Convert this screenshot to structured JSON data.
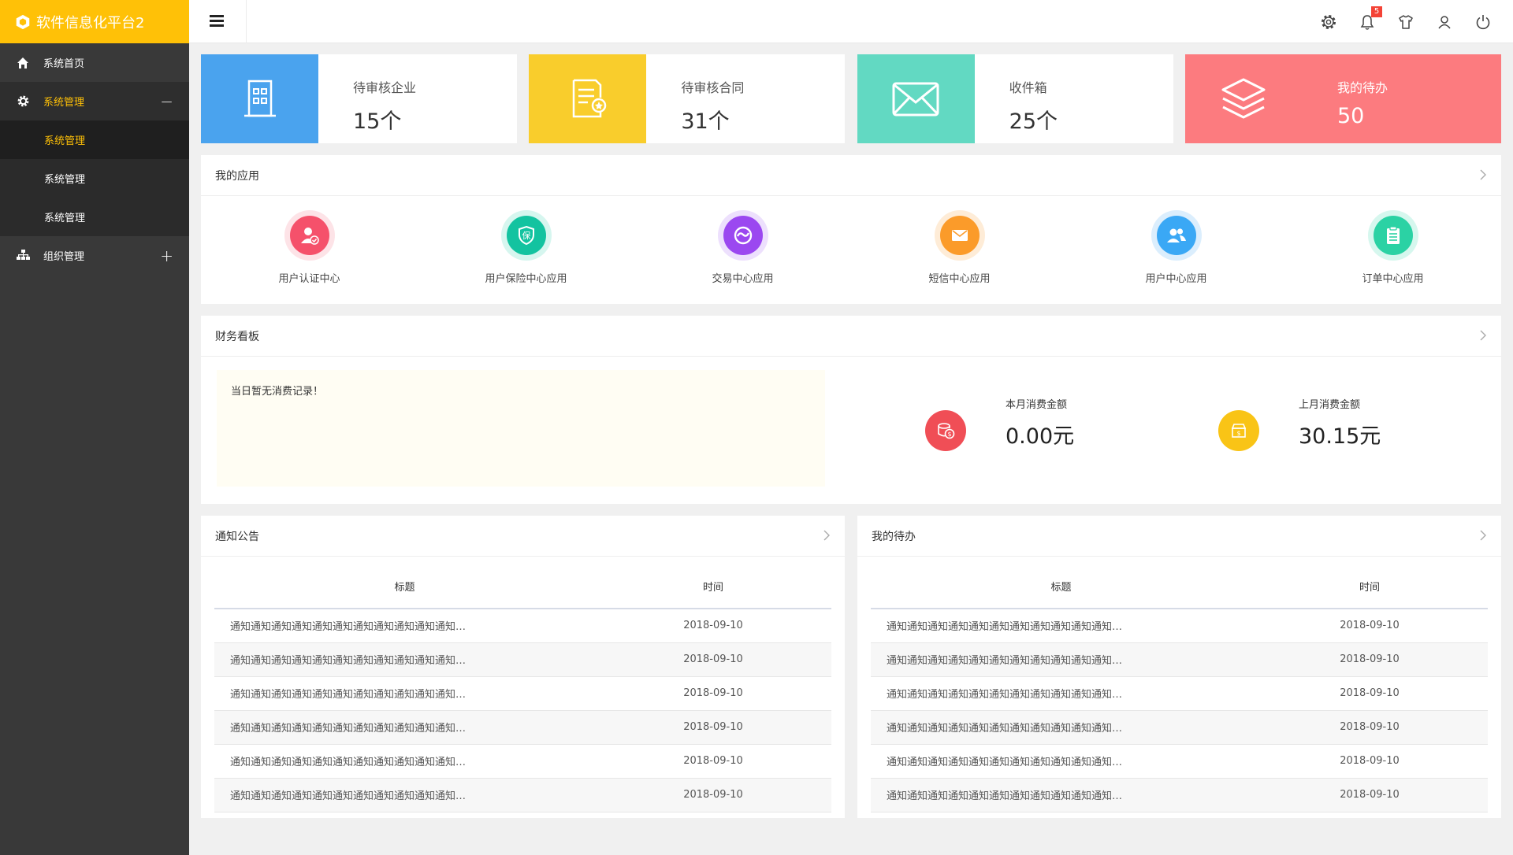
{
  "brand": {
    "title": "软件信息化平台2",
    "color": "#ffc107"
  },
  "sidebar": {
    "items": [
      {
        "label": "系统首页",
        "icon": "home-icon"
      },
      {
        "label": "系统管理",
        "icon": "gear-icon",
        "toggle": "−",
        "children": [
          {
            "label": "系统管理"
          },
          {
            "label": "系统管理"
          },
          {
            "label": "系统管理"
          }
        ]
      },
      {
        "label": "组织管理",
        "icon": "org-tree-icon",
        "toggle": "+"
      }
    ]
  },
  "topbar": {
    "icons": [
      "settings-icon",
      "bell-icon",
      "shirt-icon",
      "user-icon",
      "power-icon"
    ],
    "notification_count": "5"
  },
  "stats": [
    {
      "label": "待审核企业",
      "value": "15个",
      "icon": "building-icon",
      "color": "#4aa3ee"
    },
    {
      "label": "待审核合同",
      "value": "31个",
      "icon": "contract-icon",
      "color": "#f9cd2c"
    },
    {
      "label": "收件箱",
      "value": "25个",
      "icon": "mail-icon",
      "color": "#62d9c2"
    },
    {
      "label": "我的待办",
      "value": "50",
      "icon": "layers-icon",
      "color": "#fc7b7f"
    }
  ],
  "apps_panel": {
    "title": "我的应用",
    "apps": [
      {
        "label": "用户认证中心",
        "icon": "user-verify-icon",
        "color": "#f5516b"
      },
      {
        "label": "用户保险中心应用",
        "icon": "insurance-icon",
        "color": "#13c3a0"
      },
      {
        "label": "交易中心应用",
        "icon": "trade-icon",
        "color": "#9b48f0"
      },
      {
        "label": "短信中心应用",
        "icon": "sms-icon",
        "color": "#fb9b2a"
      },
      {
        "label": "用户中心应用",
        "icon": "users-icon",
        "color": "#3aa8f5"
      },
      {
        "label": "订单中心应用",
        "icon": "order-icon",
        "color": "#2bd2a4"
      }
    ]
  },
  "finance_panel": {
    "title": "财务看板",
    "notice": "当日暂无消费记录！",
    "this_month": {
      "label": "本月消费金额",
      "value": "0.00元",
      "color": "#f04e56"
    },
    "last_month": {
      "label": "上月消费金额",
      "value": "30.15元",
      "color": "#f9c416"
    }
  },
  "notices_panel": {
    "title": "通知公告",
    "col_title": "标题",
    "col_time": "时间",
    "rows": [
      {
        "title": "通知通知通知通知通知通知通知通知通知通知通知…",
        "time": "2018-09-10"
      },
      {
        "title": "通知通知通知通知通知通知通知通知通知通知通知…",
        "time": "2018-09-10"
      },
      {
        "title": "通知通知通知通知通知通知通知通知通知通知通知…",
        "time": "2018-09-10"
      },
      {
        "title": "通知通知通知通知通知通知通知通知通知通知通知…",
        "time": "2018-09-10"
      },
      {
        "title": "通知通知通知通知通知通知通知通知通知通知通知…",
        "time": "2018-09-10"
      },
      {
        "title": "通知通知通知通知通知通知通知通知通知通知通知…",
        "time": "2018-09-10"
      }
    ]
  },
  "todo_panel": {
    "title": "我的待办",
    "col_title": "标题",
    "col_time": "时间",
    "rows": [
      {
        "title": "通知通知通知通知通知通知通知通知通知通知通知…",
        "time": "2018-09-10"
      },
      {
        "title": "通知通知通知通知通知通知通知通知通知通知通知…",
        "time": "2018-09-10"
      },
      {
        "title": "通知通知通知通知通知通知通知通知通知通知通知…",
        "time": "2018-09-10"
      },
      {
        "title": "通知通知通知通知通知通知通知通知通知通知通知…",
        "time": "2018-09-10"
      },
      {
        "title": "通知通知通知通知通知通知通知通知通知通知通知…",
        "time": "2018-09-10"
      },
      {
        "title": "通知通知通知通知通知通知通知通知通知通知通知…",
        "time": "2018-09-10"
      }
    ]
  }
}
